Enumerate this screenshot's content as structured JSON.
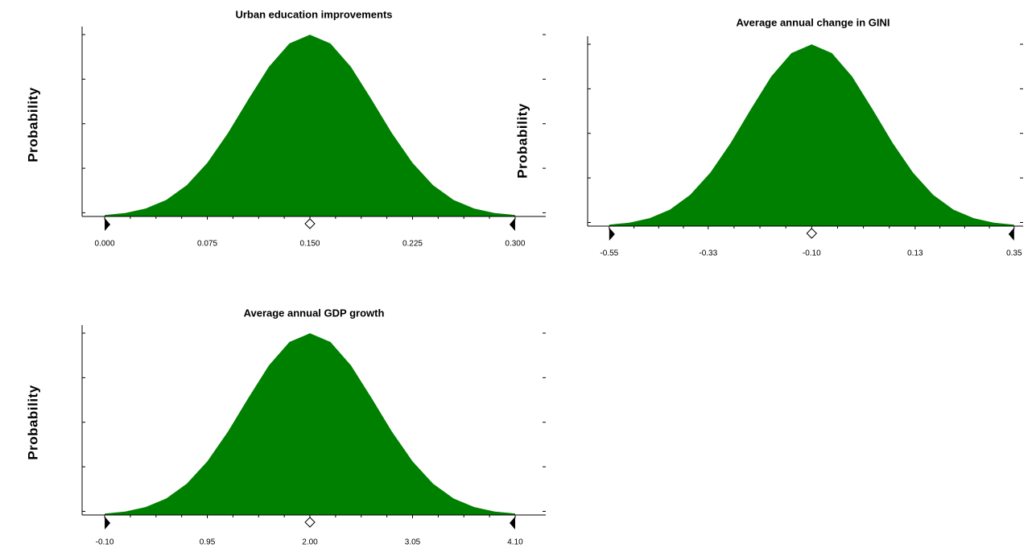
{
  "chart_data": [
    {
      "type": "area",
      "title": "Urban education improvements",
      "y_label": "Probability",
      "color": "#008000",
      "x": [
        0,
        0.015,
        0.03,
        0.045,
        0.06,
        0.075,
        0.09,
        0.105,
        0.12,
        0.135,
        0.15,
        0.165,
        0.18,
        0.195,
        0.21,
        0.225,
        0.24,
        0.255,
        0.27,
        0.285,
        0.3
      ],
      "values": [
        0.008,
        0.019,
        0.044,
        0.091,
        0.172,
        0.295,
        0.458,
        0.644,
        0.823,
        0.952,
        1,
        0.952,
        0.823,
        0.644,
        0.458,
        0.295,
        0.172,
        0.091,
        0.044,
        0.019,
        0.008
      ],
      "xlim": [
        -0.0165,
        0.3224
      ],
      "ylim": [
        0,
        1.045
      ],
      "xticks": [
        {
          "value": 0,
          "label": "0.000"
        },
        0.075,
        {
          "value": 0.15,
          "label": "0.150"
        },
        0.225,
        {
          "value": 0.3,
          "label": "0.300"
        }
      ]
    },
    {
      "type": "area",
      "title": "Average annual change in GINI",
      "y_label": "Probability",
      "color": "#008000",
      "x": [
        -0.55,
        -0.505,
        -0.46,
        -0.415,
        -0.37,
        -0.325,
        -0.28,
        -0.235,
        -0.19,
        -0.145,
        -0.1,
        -0.055,
        -0.01,
        0.035,
        0.08,
        0.125,
        0.17,
        0.215,
        0.26,
        0.305,
        0.35
      ],
      "values": [
        0.008,
        0.019,
        0.044,
        0.091,
        0.172,
        0.295,
        0.458,
        0.644,
        0.823,
        0.952,
        1,
        0.952,
        0.823,
        0.644,
        0.458,
        0.295,
        0.172,
        0.091,
        0.044,
        0.019,
        0.008
      ],
      "xlim": [
        -0.598,
        0.37
      ],
      "ylim": [
        0,
        1.045
      ],
      "xticks": [
        -0.55,
        -0.33,
        {
          "value": -0.1,
          "label": "-0.10"
        },
        0.13,
        0.35
      ]
    },
    {
      "type": "area",
      "title": "Average annual GDP growth",
      "y_label": "Probability",
      "color": "#008000",
      "x": [
        -0.1,
        0.11,
        0.32,
        0.53,
        0.74,
        0.95,
        1.16,
        1.37,
        1.58,
        1.79,
        2,
        2.21,
        2.42,
        2.63,
        2.84,
        3.05,
        3.26,
        3.47,
        3.68,
        3.89,
        4.1
      ],
      "values": [
        0.008,
        0.019,
        0.044,
        0.091,
        0.172,
        0.295,
        0.458,
        0.644,
        0.823,
        0.952,
        1,
        0.952,
        0.823,
        0.644,
        0.458,
        0.295,
        0.172,
        0.091,
        0.044,
        0.019,
        0.008
      ],
      "xlim": [
        -0.331,
        4.413
      ],
      "ylim": [
        0,
        1.045
      ],
      "xticks": [
        {
          "value": -0.1,
          "label": "-0.10"
        },
        0.95,
        {
          "value": 2,
          "label": "2.00"
        },
        3.05,
        {
          "value": 4.1,
          "label": "4.10"
        }
      ]
    }
  ]
}
